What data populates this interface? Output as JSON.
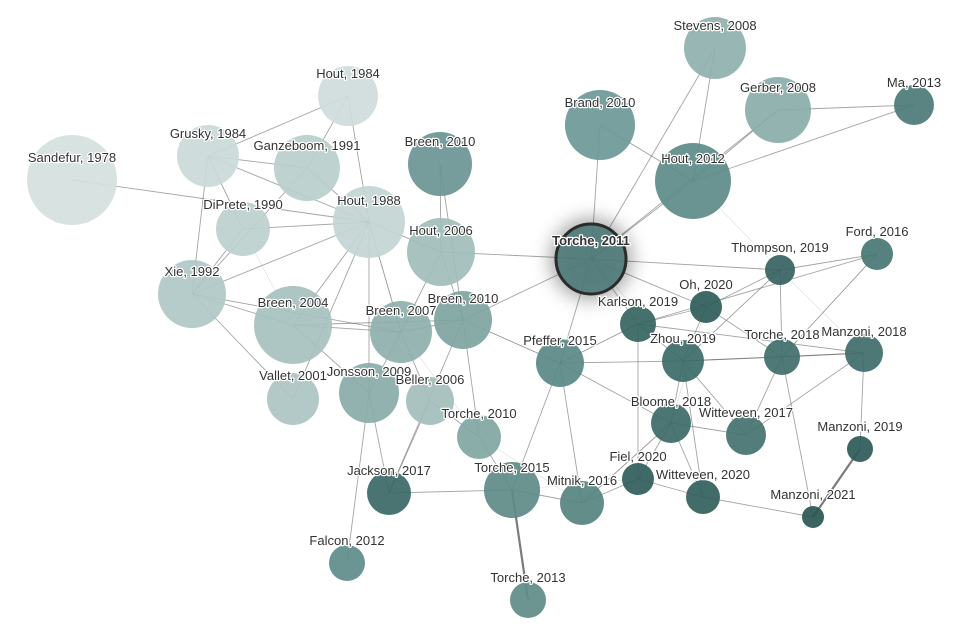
{
  "graph": {
    "focus_node": "Torche, 2011",
    "focus_ring_color": "#2b2b2b",
    "edge_color": "#5a5a5a",
    "nodes": [
      {
        "id": "sandefur1978",
        "label": "Sandefur, 1978",
        "color": "#d5dfde"
      },
      {
        "id": "hout1984",
        "label": "Hout, 1984",
        "color": "#cfdcdb"
      },
      {
        "id": "grusky1984",
        "label": "Grusky, 1984",
        "color": "#cadad8"
      },
      {
        "id": "ganzeboom1991",
        "label": "Ganzeboom, 1991",
        "color": "#b8cecc"
      },
      {
        "id": "diprete1990",
        "label": "DiPrete, 1990",
        "color": "#bcd0ce"
      },
      {
        "id": "hout1988",
        "label": "Hout, 1988",
        "color": "#c2d5d3"
      },
      {
        "id": "xie1992",
        "label": "Xie, 1992",
        "color": "#b0c8c6"
      },
      {
        "id": "breen2010a",
        "label": "Breen, 2010",
        "color": "#6a9593"
      },
      {
        "id": "hout2006",
        "label": "Hout, 2006",
        "color": "#a1bdbb"
      },
      {
        "id": "breen2004",
        "label": "Breen, 2004",
        "color": "#a6c0be"
      },
      {
        "id": "breen2007",
        "label": "Breen, 2007",
        "color": "#8eb0ad"
      },
      {
        "id": "breen2010b",
        "label": "Breen, 2010",
        "color": "#7ea4a1"
      },
      {
        "id": "vallet2001",
        "label": "Vallet, 2001",
        "color": "#acc4c2"
      },
      {
        "id": "jonsson2009",
        "label": "Jonsson, 2009",
        "color": "#88aba8"
      },
      {
        "id": "beller2006",
        "label": "Beller, 2006",
        "color": "#a3bebc"
      },
      {
        "id": "torche2010",
        "label": "Torche, 2010",
        "color": "#80a6a3"
      },
      {
        "id": "jackson2017",
        "label": "Jackson, 2017",
        "color": "#3b6866"
      },
      {
        "id": "falcon2012",
        "label": "Falcon, 2012",
        "color": "#5e8c89"
      },
      {
        "id": "torche2015",
        "label": "Torche, 2015",
        "color": "#5e8a87"
      },
      {
        "id": "torche2013",
        "label": "Torche, 2013",
        "color": "#5f8c89"
      },
      {
        "id": "mitnik2016",
        "label": "Mitnik, 2016",
        "color": "#55837f"
      },
      {
        "id": "pfeffer2015",
        "label": "Pfeffer, 2015",
        "color": "#5a8885"
      },
      {
        "id": "torche2011",
        "label": "Torche, 2011",
        "color": "#4f7c79"
      },
      {
        "id": "brand2010",
        "label": "Brand, 2010",
        "color": "#6d9896"
      },
      {
        "id": "hout2012",
        "label": "Hout, 2012",
        "color": "#5d8b88"
      },
      {
        "id": "stevens2008",
        "label": "Stevens, 2008",
        "color": "#8fb1ae"
      },
      {
        "id": "gerber2008",
        "label": "Gerber, 2008",
        "color": "#89aca9"
      },
      {
        "id": "ma2013",
        "label": "Ma, 2013",
        "color": "#4b7a77"
      },
      {
        "id": "ford2016",
        "label": "Ford, 2016",
        "color": "#477774"
      },
      {
        "id": "thompson2019",
        "label": "Thompson, 2019",
        "color": "#35625f"
      },
      {
        "id": "oh2020",
        "label": "Oh, 2020",
        "color": "#2f5c59"
      },
      {
        "id": "karlson2019",
        "label": "Karlson, 2019",
        "color": "#356460"
      },
      {
        "id": "zhou2019",
        "label": "Zhou, 2019",
        "color": "#3b6a67"
      },
      {
        "id": "torche2018",
        "label": "Torche, 2018",
        "color": "#3f6e6b"
      },
      {
        "id": "manzoni2018",
        "label": "Manzoni, 2018",
        "color": "#3e6d6a"
      },
      {
        "id": "bloome2018",
        "label": "Bloome, 2018",
        "color": "#3c6a67"
      },
      {
        "id": "witteveen2017",
        "label": "Witteveen, 2017",
        "color": "#44726f"
      },
      {
        "id": "manzoni2019",
        "label": "Manzoni, 2019",
        "color": "#2d5a57"
      },
      {
        "id": "fiel2020",
        "label": "Fiel, 2020",
        "color": "#2f5d5a"
      },
      {
        "id": "witteveen2020",
        "label": "Witteveen, 2020",
        "color": "#325f5c"
      },
      {
        "id": "manzoni2021",
        "label": "Manzoni, 2021",
        "color": "#2a5653"
      }
    ],
    "edges": [
      [
        "sandefur1978",
        "hout1988"
      ],
      [
        "hout1984",
        "hout1988"
      ],
      [
        "hout1984",
        "grusky1984"
      ],
      [
        "hout1984",
        "ganzeboom1991"
      ],
      [
        "grusky1984",
        "ganzeboom1991"
      ],
      [
        "grusky1984",
        "diprete1990"
      ],
      [
        "grusky1984",
        "xie1992"
      ],
      [
        "grusky1984",
        "hout1988"
      ],
      [
        "ganzeboom1991",
        "hout1988"
      ],
      [
        "ganzeboom1991",
        "xie1992"
      ],
      [
        "diprete1990",
        "hout1988"
      ],
      [
        "diprete1990",
        "xie1992"
      ],
      [
        "hout1988",
        "xie1992"
      ],
      [
        "hout1988",
        "breen2004"
      ],
      [
        "hout1988",
        "breen2007"
      ],
      [
        "hout1988",
        "hout2006"
      ],
      [
        "hout1988",
        "jonsson2009"
      ],
      [
        "hout1988",
        "vallet2001"
      ],
      [
        "xie1992",
        "breen2004"
      ],
      [
        "xie1992",
        "breen2007"
      ],
      [
        "xie1992",
        "vallet2001"
      ],
      [
        "hout2006",
        "torche2011"
      ],
      [
        "hout2006",
        "breen2010b"
      ],
      [
        "hout2006",
        "breen2007"
      ],
      [
        "breen2010a",
        "breen2010b"
      ],
      [
        "breen2010a",
        "hout2006"
      ],
      [
        "breen2004",
        "breen2007"
      ],
      [
        "breen2004",
        "jonsson2009"
      ],
      [
        "breen2004",
        "breen2010b"
      ],
      [
        "breen2007",
        "breen2010b"
      ],
      [
        "breen2007",
        "jonsson2009"
      ],
      [
        "breen2007",
        "beller2006"
      ],
      [
        "breen2010b",
        "torche2011"
      ],
      [
        "breen2010b",
        "pfeffer2015"
      ],
      [
        "breen2010b",
        "torche2010"
      ],
      [
        "breen2010b",
        "jackson2017"
      ],
      [
        "jonsson2009",
        "jackson2017"
      ],
      [
        "jonsson2009",
        "falcon2012"
      ],
      [
        "beller2006",
        "torche2010"
      ],
      [
        "beller2006",
        "jackson2017"
      ],
      [
        "torche2010",
        "torche2015"
      ],
      [
        "jackson2017",
        "torche2015"
      ],
      [
        "torche2015",
        "torche2013"
      ],
      [
        "torche2015",
        "pfeffer2015"
      ],
      [
        "torche2015",
        "mitnik2016"
      ],
      [
        "pfeffer2015",
        "torche2011"
      ],
      [
        "pfeffer2015",
        "mitnik2016"
      ],
      [
        "pfeffer2015",
        "karlson2019"
      ],
      [
        "pfeffer2015",
        "zhou2019"
      ],
      [
        "pfeffer2015",
        "bloome2018"
      ],
      [
        "torche2011",
        "hout2012"
      ],
      [
        "torche2011",
        "brand2010"
      ],
      [
        "torche2011",
        "stevens2008"
      ],
      [
        "torche2011",
        "gerber2008"
      ],
      [
        "torche2011",
        "thompson2019"
      ],
      [
        "torche2011",
        "karlson2019"
      ],
      [
        "torche2011",
        "oh2020"
      ],
      [
        "brand2010",
        "hout2012"
      ],
      [
        "hout2012",
        "gerber2008"
      ],
      [
        "gerber2008",
        "ma2013"
      ],
      [
        "stevens2008",
        "hout2012"
      ],
      [
        "ma2013",
        "hout2012"
      ],
      [
        "thompson2019",
        "ford2016"
      ],
      [
        "thompson2019",
        "oh2020"
      ],
      [
        "thompson2019",
        "torche2018"
      ],
      [
        "thompson2019",
        "zhou2019"
      ],
      [
        "ford2016",
        "torche2018"
      ],
      [
        "ford2016",
        "karlson2019"
      ],
      [
        "oh2020",
        "zhou2019"
      ],
      [
        "oh2020",
        "karlson2019"
      ],
      [
        "oh2020",
        "torche2018"
      ],
      [
        "karlson2019",
        "zhou2019"
      ],
      [
        "karlson2019",
        "fiel2020"
      ],
      [
        "karlson2019",
        "manzoni2018"
      ],
      [
        "zhou2019",
        "torche2018"
      ],
      [
        "zhou2019",
        "bloome2018"
      ],
      [
        "zhou2019",
        "witteveen2020"
      ],
      [
        "zhou2019",
        "manzoni2018"
      ],
      [
        "zhou2019",
        "witteveen2017"
      ],
      [
        "torche2018",
        "manzoni2018"
      ],
      [
        "torche2018",
        "witteveen2017"
      ],
      [
        "torche2018",
        "manzoni2021"
      ],
      [
        "manzoni2018",
        "manzoni2019"
      ],
      [
        "manzoni2018",
        "witteveen2017"
      ],
      [
        "manzoni2019",
        "manzoni2021"
      ],
      [
        "bloome2018",
        "fiel2020"
      ],
      [
        "bloome2018",
        "witteveen2020"
      ],
      [
        "bloome2018",
        "witteveen2017"
      ],
      [
        "fiel2020",
        "witteveen2020"
      ],
      [
        "witteveen2020",
        "manzoni2021"
      ],
      [
        "mitnik2016",
        "fiel2020"
      ],
      [
        "mitnik2016",
        "bloome2018"
      ]
    ]
  }
}
